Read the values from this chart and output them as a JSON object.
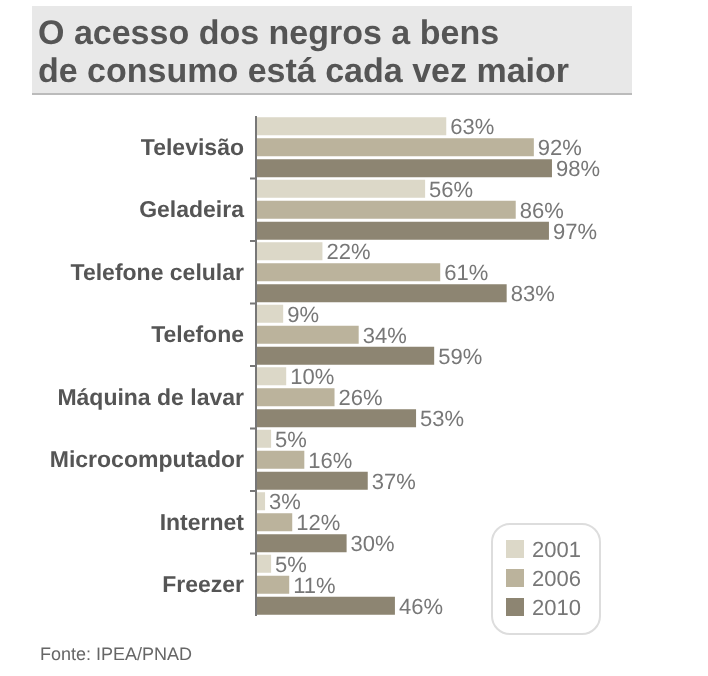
{
  "chart_data": {
    "type": "bar",
    "orientation": "horizontal",
    "title": "O acesso dos negros a bens\nde consumo está cada vez maior",
    "categories": [
      "Televisão",
      "Geladeira",
      "Telefone celular",
      "Telefone",
      "Máquina de lavar",
      "Microcomputador",
      "Internet",
      "Freezer"
    ],
    "series": [
      {
        "name": "2001",
        "color": "#dcd8c8",
        "values": [
          63,
          56,
          22,
          9,
          10,
          5,
          3,
          5
        ],
        "value_labels": [
          "63%",
          "56%",
          "22%",
          "9%",
          "10%",
          "5%",
          "3%",
          "5%"
        ]
      },
      {
        "name": "2006",
        "color": "#bbb39c",
        "values": [
          92,
          86,
          61,
          34,
          26,
          16,
          12,
          11
        ],
        "value_labels": [
          "92%",
          "86%",
          "61%",
          "34%",
          "26%",
          "16%",
          "12%",
          "11%"
        ]
      },
      {
        "name": "2010",
        "color": "#8d8572",
        "values": [
          98,
          97,
          83,
          59,
          53,
          37,
          30,
          46
        ],
        "value_labels": [
          "98%",
          "97%",
          "83%",
          "59%",
          "53%",
          "37%",
          "30%",
          "46%"
        ]
      }
    ],
    "xlim": [
      0,
      100
    ],
    "tick_labels": "y",
    "legend": "bottom right",
    "annotations": [
      "Fonte: IPEA/PNAD"
    ]
  }
}
